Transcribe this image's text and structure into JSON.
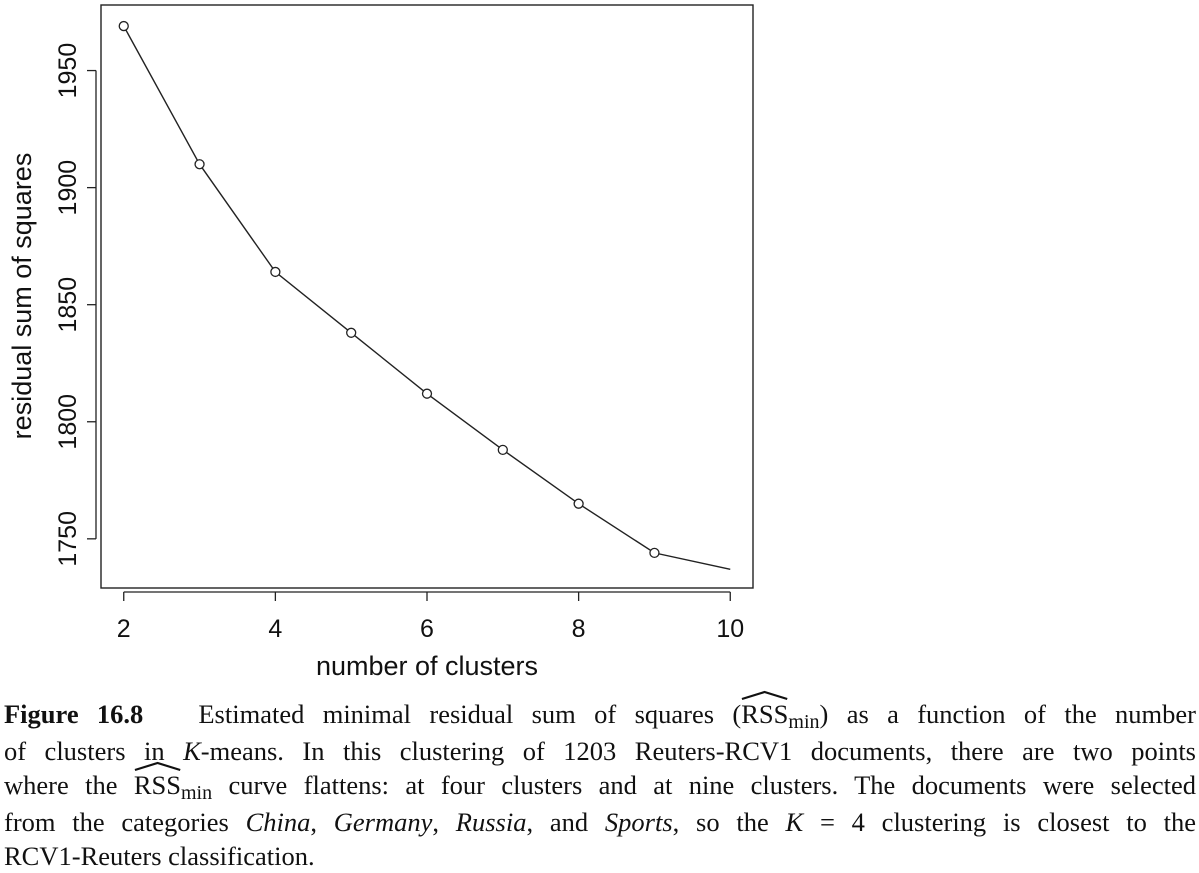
{
  "chart_data": {
    "type": "line",
    "x": [
      2,
      3,
      4,
      5,
      6,
      7,
      8,
      9,
      10
    ],
    "series": [
      {
        "values": [
          1969,
          1910,
          1864,
          1838,
          1812,
          1788,
          1765,
          1744,
          1737
        ],
        "markers": [
          true,
          true,
          true,
          true,
          true,
          true,
          true,
          true,
          false
        ]
      }
    ],
    "xlabel": "number of clusters",
    "ylabel": "residual sum of squares",
    "xlim": [
      1.7,
      10.3
    ],
    "ylim": [
      1729,
      1978
    ],
    "xticks": [
      2,
      4,
      6,
      8,
      10
    ],
    "xtick_labels": [
      "2",
      "4",
      "6",
      "8",
      "10"
    ],
    "yticks": [
      1750,
      1800,
      1850,
      1900,
      1950
    ],
    "ytick_labels": [
      "1750",
      "1800",
      "1850",
      "1900",
      "1950"
    ],
    "grid": false,
    "marker": "open-circle",
    "line_color": "#222222"
  },
  "caption": {
    "figure_label": "Figure 16.8",
    "line1_a": "Estimated minimal residual sum of squares (",
    "rss": "RSS",
    "rss_sub": "min",
    "line1_b": ") as a function of the number",
    "line2_a": "of clusters in ",
    "k": "K",
    "line2_b": "-means. In this clustering of 1203 Reuters-RCV1 documents, there are two points",
    "line3_a": "where the ",
    "line3_b": " curve flattens: at four clusters and at nine clusters. The documents were selected",
    "line4_a": "from the categories ",
    "cat_china": "China",
    "sep1": ", ",
    "cat_germany": "Germany",
    "sep2": ", ",
    "cat_russia": "Russia",
    "line4_b": ", and ",
    "cat_sports": "Sports",
    "line4_c": ", so the ",
    "line4_d": " = 4 clustering is closest to the",
    "line5": "RCV1-Reuters classification."
  }
}
